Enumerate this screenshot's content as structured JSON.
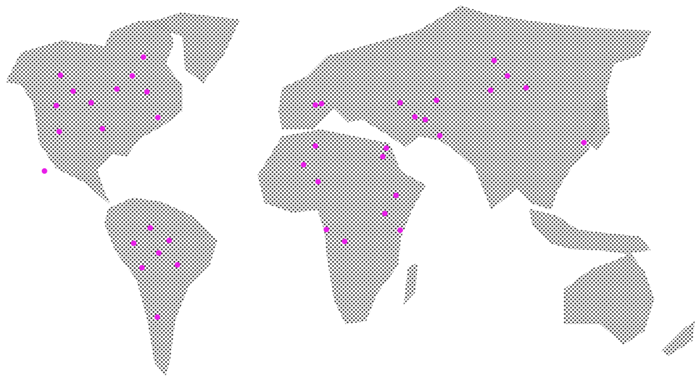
{
  "marker_color": "#e81ee8",
  "markers": [
    {
      "lon": -72.8,
      "lat": 46.2
    },
    {
      "lon": -78.2,
      "lat": 40.2
    },
    {
      "lon": -112.8,
      "lat": 40.4
    },
    {
      "lon": -106.7,
      "lat": 35.3
    },
    {
      "lon": -85.6,
      "lat": 36.0
    },
    {
      "lon": -71.1,
      "lat": 35.1
    },
    {
      "lon": -114.8,
      "lat": 30.7
    },
    {
      "lon": -98.0,
      "lat": 31.6
    },
    {
      "lon": -65.8,
      "lat": 26.9
    },
    {
      "lon": -113.4,
      "lat": 22.4
    },
    {
      "lon": -92.6,
      "lat": 23.3
    },
    {
      "lon": -120.5,
      "lat": 9.8
    },
    {
      "lon": -69.5,
      "lat": -8.4
    },
    {
      "lon": -60.4,
      "lat": -12.4
    },
    {
      "lon": -77.5,
      "lat": -13.3
    },
    {
      "lon": -65.4,
      "lat": -16.4
    },
    {
      "lon": -73.5,
      "lat": -21.1
    },
    {
      "lon": -56.4,
      "lat": -20.2
    },
    {
      "lon": -66.1,
      "lat": -36.9
    },
    {
      "lon": 10.1,
      "lat": 30.9
    },
    {
      "lon": 13.1,
      "lat": 31.3
    },
    {
      "lon": 51.0,
      "lat": 31.6
    },
    {
      "lon": 68.5,
      "lat": 32.4
    },
    {
      "lon": 58.1,
      "lat": 27.1
    },
    {
      "lon": 63.1,
      "lat": 26.2
    },
    {
      "lon": 70.1,
      "lat": 21.1
    },
    {
      "lon": 96.3,
      "lat": 45.1
    },
    {
      "lon": 102.7,
      "lat": 40.2
    },
    {
      "lon": 94.6,
      "lat": 35.6
    },
    {
      "lon": 111.7,
      "lat": 36.4
    },
    {
      "lon": 139.6,
      "lat": 18.9
    },
    {
      "lon": 10.1,
      "lat": 17.8
    },
    {
      "lon": 44.3,
      "lat": 17.1
    },
    {
      "lon": 42.6,
      "lat": 14.4
    },
    {
      "lon": 4.4,
      "lat": 11.8
    },
    {
      "lon": 11.4,
      "lat": 6.4
    },
    {
      "lon": 49.0,
      "lat": 2.0
    },
    {
      "lon": 43.6,
      "lat": -3.8
    },
    {
      "lon": 15.4,
      "lat": -8.9
    },
    {
      "lon": 51.0,
      "lat": -9.1
    },
    {
      "lon": 24.2,
      "lat": -12.7
    }
  ]
}
